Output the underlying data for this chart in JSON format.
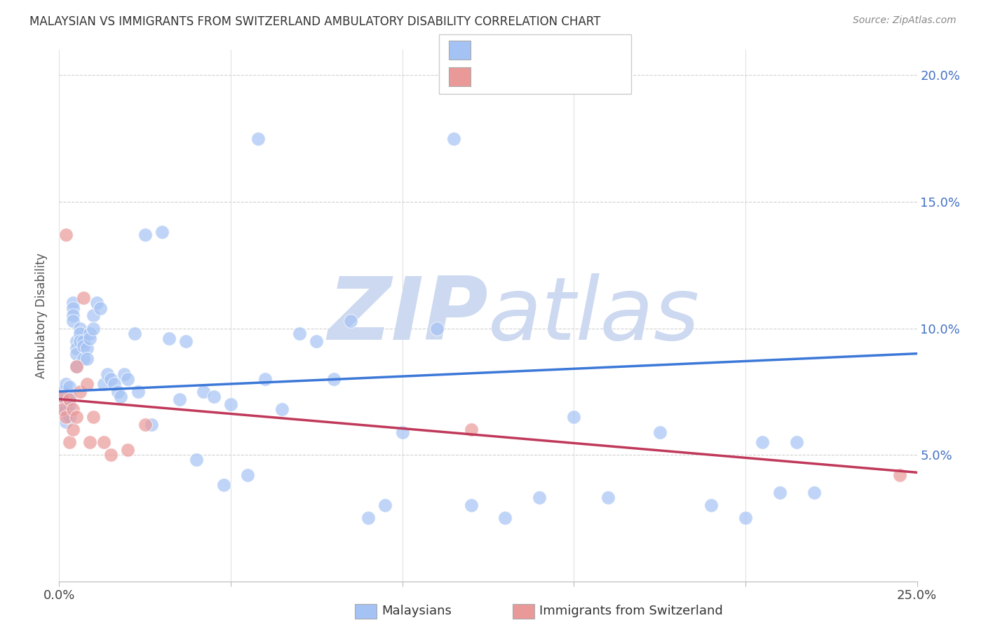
{
  "title": "MALAYSIAN VS IMMIGRANTS FROM SWITZERLAND AMBULATORY DISABILITY CORRELATION CHART",
  "source": "Source: ZipAtlas.com",
  "ylabel": "Ambulatory Disability",
  "x_min": 0.0,
  "x_max": 0.25,
  "y_min": 0.0,
  "y_max": 0.21,
  "x_tick_pos": [
    0.0,
    0.05,
    0.1,
    0.15,
    0.2,
    0.25
  ],
  "x_tick_labels": [
    "0.0%",
    "",
    "",
    "",
    "",
    "25.0%"
  ],
  "y_tick_pos": [
    0.05,
    0.1,
    0.15,
    0.2
  ],
  "y_tick_labels": [
    "5.0%",
    "10.0%",
    "15.0%",
    "20.0%"
  ],
  "blue_color": "#a4c2f4",
  "pink_color": "#ea9999",
  "blue_line_color": "#3c78d8",
  "pink_line_color": "#c0395a",
  "watermark_color": "#cdd9f0",
  "legend_label_blue": "Malaysians",
  "legend_label_pink": "Immigrants from Switzerland",
  "blue_x": [
    0.001,
    0.001,
    0.001,
    0.002,
    0.002,
    0.002,
    0.002,
    0.003,
    0.003,
    0.003,
    0.003,
    0.004,
    0.004,
    0.004,
    0.004,
    0.005,
    0.005,
    0.005,
    0.005,
    0.006,
    0.006,
    0.006,
    0.007,
    0.007,
    0.007,
    0.008,
    0.008,
    0.009,
    0.009,
    0.01,
    0.01,
    0.011,
    0.012,
    0.013,
    0.014,
    0.015,
    0.016,
    0.017,
    0.018,
    0.019,
    0.02,
    0.022,
    0.023,
    0.025,
    0.027,
    0.03,
    0.032,
    0.035,
    0.037,
    0.04,
    0.042,
    0.045,
    0.048,
    0.05,
    0.055,
    0.058,
    0.06,
    0.065,
    0.07,
    0.075,
    0.08,
    0.085,
    0.09,
    0.095,
    0.1,
    0.11,
    0.115,
    0.12,
    0.13,
    0.14,
    0.15,
    0.16,
    0.175,
    0.19,
    0.2,
    0.205,
    0.21,
    0.215,
    0.22
  ],
  "blue_y": [
    0.075,
    0.073,
    0.068,
    0.078,
    0.072,
    0.068,
    0.063,
    0.077,
    0.073,
    0.07,
    0.065,
    0.11,
    0.108,
    0.105,
    0.103,
    0.095,
    0.092,
    0.09,
    0.085,
    0.1,
    0.098,
    0.095,
    0.095,
    0.093,
    0.088,
    0.092,
    0.088,
    0.098,
    0.096,
    0.105,
    0.1,
    0.11,
    0.108,
    0.078,
    0.082,
    0.08,
    0.078,
    0.075,
    0.073,
    0.082,
    0.08,
    0.098,
    0.075,
    0.137,
    0.062,
    0.138,
    0.096,
    0.072,
    0.095,
    0.048,
    0.075,
    0.073,
    0.038,
    0.07,
    0.042,
    0.175,
    0.08,
    0.068,
    0.098,
    0.095,
    0.08,
    0.103,
    0.025,
    0.03,
    0.059,
    0.1,
    0.175,
    0.03,
    0.025,
    0.033,
    0.065,
    0.033,
    0.059,
    0.03,
    0.025,
    0.055,
    0.035,
    0.055,
    0.035
  ],
  "pink_x": [
    0.001,
    0.001,
    0.002,
    0.002,
    0.003,
    0.003,
    0.004,
    0.004,
    0.005,
    0.005,
    0.006,
    0.007,
    0.008,
    0.009,
    0.01,
    0.013,
    0.015,
    0.02,
    0.025,
    0.12,
    0.245
  ],
  "pink_y": [
    0.073,
    0.068,
    0.137,
    0.065,
    0.072,
    0.055,
    0.068,
    0.06,
    0.085,
    0.065,
    0.075,
    0.112,
    0.078,
    0.055,
    0.065,
    0.055,
    0.05,
    0.052,
    0.062,
    0.06,
    0.042
  ],
  "blue_line_y0": 0.075,
  "blue_line_y1": 0.09,
  "pink_line_y0": 0.072,
  "pink_line_y1": 0.043,
  "grid_color": "#d0d0d0",
  "bg_color": "#ffffff"
}
